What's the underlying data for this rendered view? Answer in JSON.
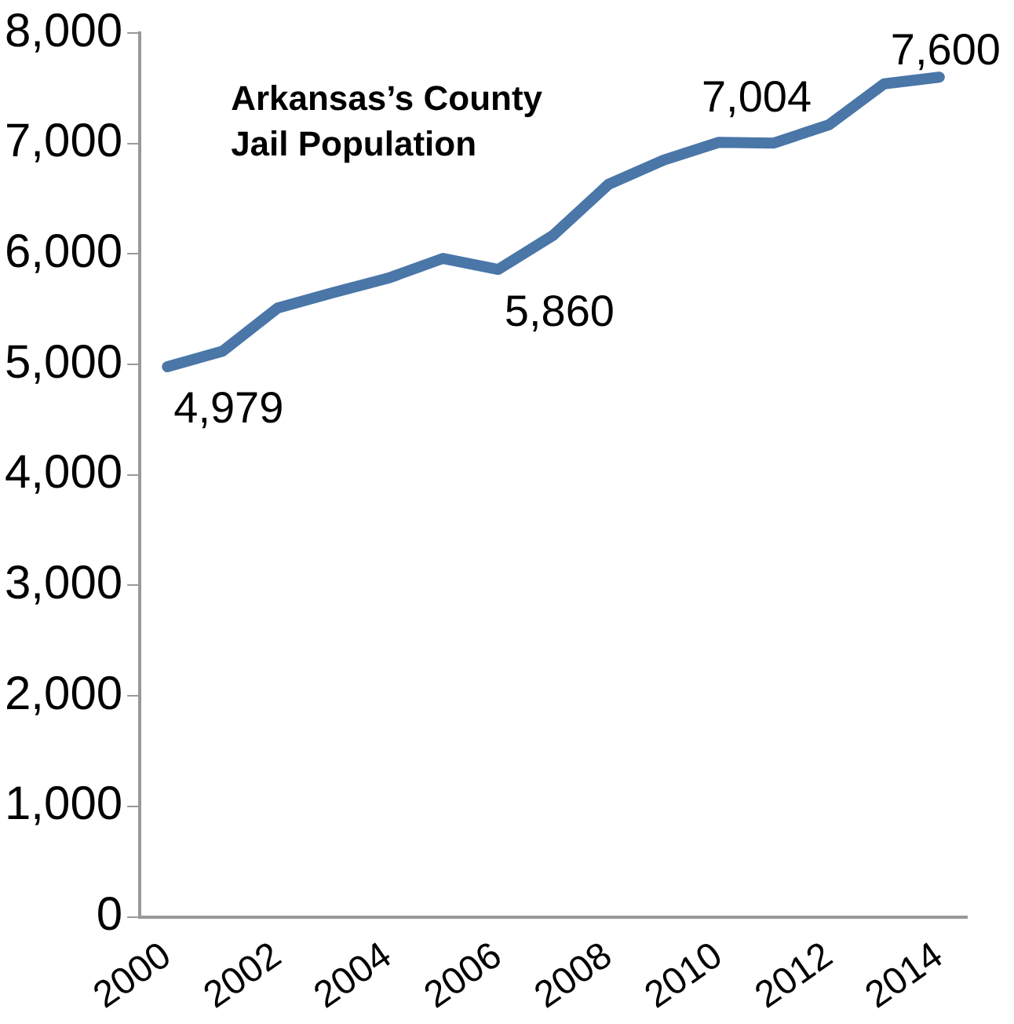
{
  "chart_data": {
    "type": "line",
    "title": "Arkansas’s County Jail Population",
    "categories": [
      "2000",
      null,
      "2002",
      null,
      "2004",
      null,
      "2006",
      null,
      "2008",
      null,
      "2010",
      null,
      "2012",
      null,
      "2014"
    ],
    "series": [
      {
        "color": "#4a76a8",
        "values": [
          4979,
          5120,
          5510,
          5650,
          5780,
          5960,
          5860,
          6170,
          6630,
          6850,
          7010,
          7004,
          7170,
          7540,
          7600
        ],
        "value_labels": [
          "4,979",
          null,
          null,
          null,
          null,
          null,
          "5,860",
          null,
          null,
          null,
          null,
          "7,004",
          null,
          null,
          "7,600"
        ]
      }
    ],
    "ylim": [
      0,
      8000
    ],
    "yticks": [
      {
        "value": 0,
        "label": "0"
      },
      {
        "value": 1000,
        "label": "1,000"
      },
      {
        "value": 2000,
        "label": "2,000"
      },
      {
        "value": 3000,
        "label": "3,000"
      },
      {
        "value": 4000,
        "label": "4,000"
      },
      {
        "value": 5000,
        "label": "5,000"
      },
      {
        "value": 6000,
        "label": "6,000"
      },
      {
        "value": 7000,
        "label": "7,000"
      },
      {
        "value": 8000,
        "label": "8,000"
      }
    ],
    "grid": false,
    "legend": false,
    "marker": "none",
    "line_style": "solid"
  }
}
